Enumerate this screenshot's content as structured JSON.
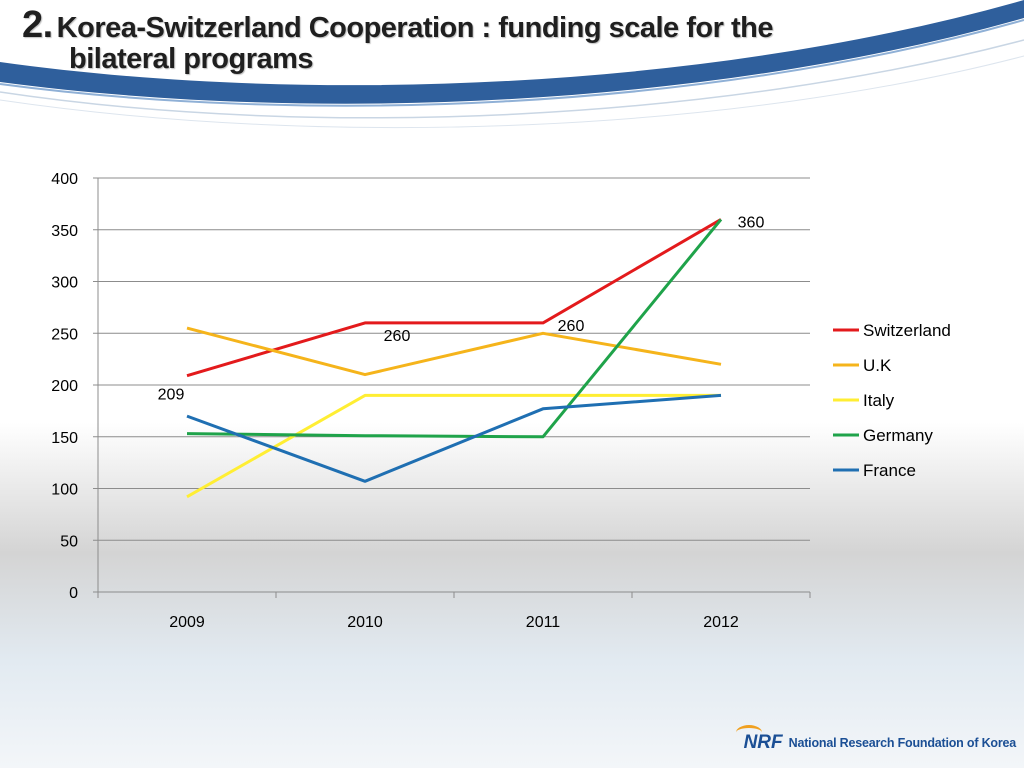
{
  "slide": {
    "title_number": "2.",
    "title_line1": "Korea-Switzerland Cooperation : funding scale for the",
    "title_line2": "bilateral programs",
    "logo_mark": "NRF",
    "logo_text": "National Research Foundation of Korea",
    "colors": {
      "band_blue": "#2f5f9c",
      "logo_blue": "#1b4f95"
    }
  },
  "chart_data": {
    "type": "line",
    "categories": [
      "2009",
      "2010",
      "2011",
      "2012"
    ],
    "ylim": [
      0,
      400
    ],
    "yticks": [
      0,
      50,
      100,
      150,
      200,
      250,
      300,
      350,
      400
    ],
    "grid": true,
    "legend_position": "right",
    "series": [
      {
        "name": "Switzerland",
        "color": "#e31a1c",
        "values": [
          209,
          260,
          260,
          360
        ]
      },
      {
        "name": "U.K",
        "color": "#f5b41b",
        "values": [
          255,
          210,
          250,
          220
        ]
      },
      {
        "name": "Italy",
        "color": "#ffee33",
        "values": [
          92,
          190,
          190,
          190
        ]
      },
      {
        "name": "Germany",
        "color": "#1fa34a",
        "values": [
          153,
          151,
          150,
          360
        ]
      },
      {
        "name": "France",
        "color": "#1f6fb2",
        "values": [
          170,
          107,
          177,
          190
        ]
      }
    ],
    "data_labels": [
      {
        "series": "Switzerland",
        "index": 0,
        "text": "209"
      },
      {
        "series": "Switzerland",
        "index": 1,
        "text": "260"
      },
      {
        "series": "Switzerland",
        "index": 2,
        "text": "260"
      },
      {
        "series": "Switzerland",
        "index": 3,
        "text": "360"
      }
    ]
  }
}
